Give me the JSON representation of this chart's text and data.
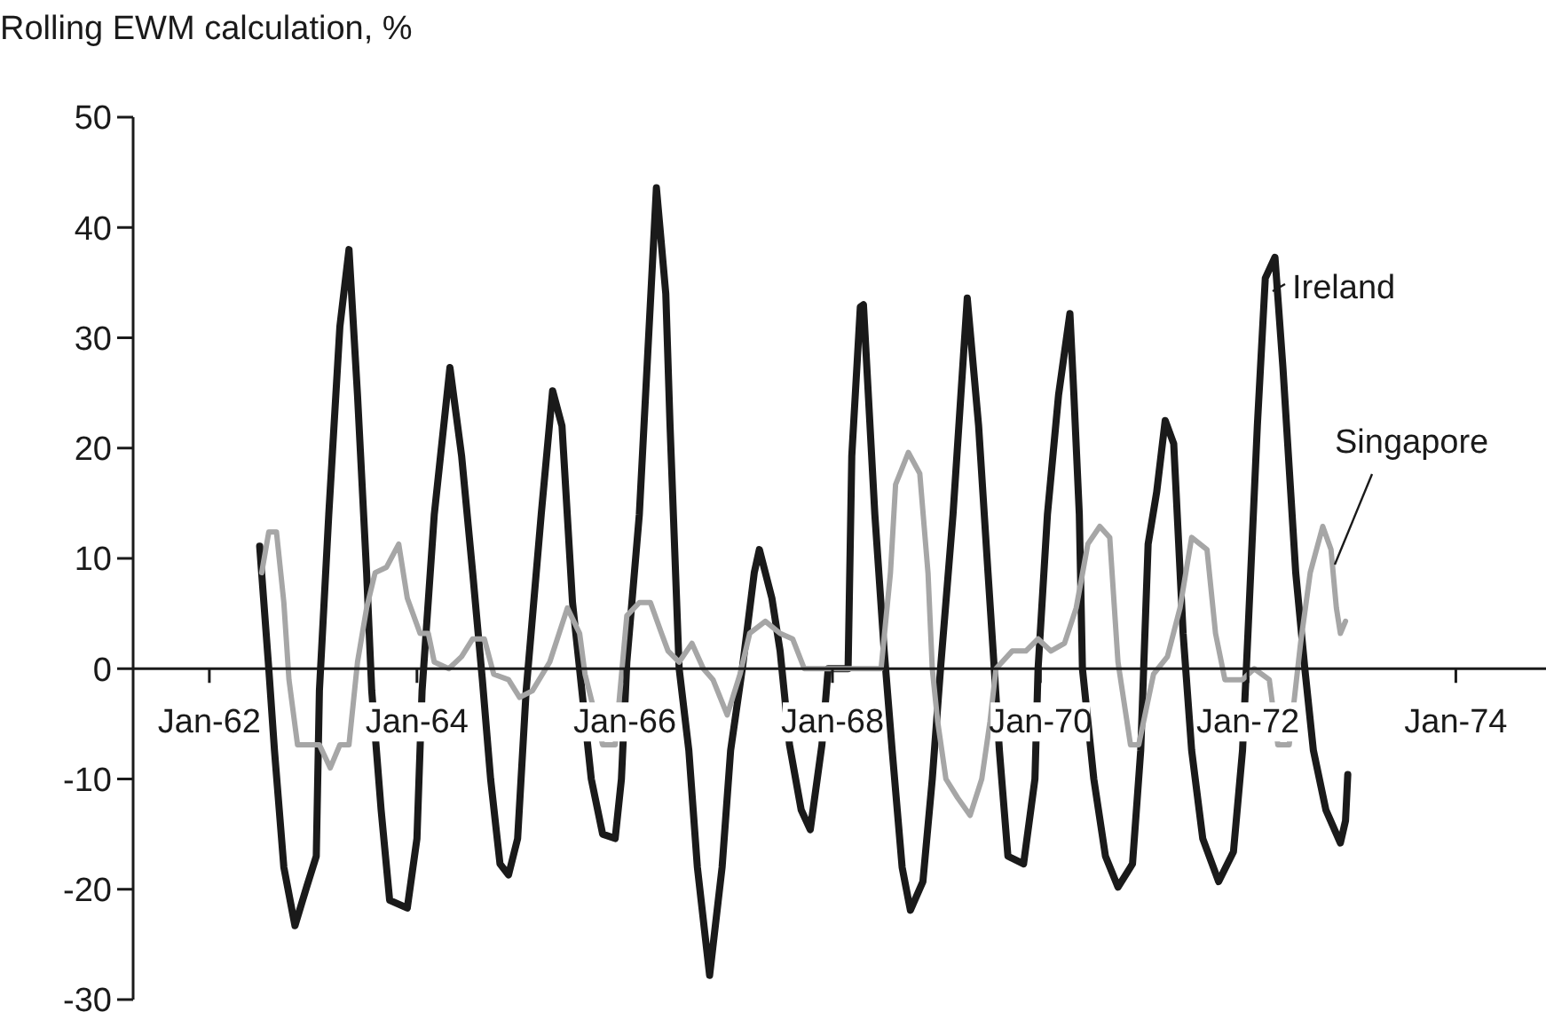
{
  "chart_data": {
    "type": "line",
    "ylabel": "Rolling EWM calculation, %",
    "ylim": [
      -30,
      50
    ],
    "yticks": [
      -30,
      -20,
      -10,
      0,
      10,
      20,
      30,
      40,
      50
    ],
    "xlim": [
      "1961-04-08",
      "1974-11-14"
    ],
    "xticks": [
      {
        "value": "1962-01",
        "label": "Jan-62"
      },
      {
        "value": "1964-01",
        "label": "Jan-64"
      },
      {
        "value": "1966-01",
        "label": "Jan-66"
      },
      {
        "value": "1968-01",
        "label": "Jan-68"
      },
      {
        "value": "1970-01",
        "label": "Jan-70"
      },
      {
        "value": "1972-01",
        "label": "Jan-72"
      },
      {
        "value": "1974-01",
        "label": "Jan-74"
      }
    ],
    "grid": false,
    "legend": "right",
    "marker": "none",
    "line_style": "solid",
    "series": [
      {
        "name": "Ireland",
        "color": "#1a1a1a",
        "x": [
          "1962-06-27",
          "1962-07-29",
          "1962-08-18",
          "1962-09-20",
          "1962-10-29",
          "1962-12-09",
          "1963-01-12",
          "1963-01-23",
          "1963-02-25",
          "1963-04-05",
          "1963-05-07",
          "1963-06-06",
          "1963-07-08",
          "1963-07-26",
          "1963-08-28",
          "1963-09-27",
          "1963-11-28",
          "1964-01-01",
          "1964-01-19",
          "1964-03-02",
          "1964-04-26",
          "1964-06-06",
          "1964-07-15",
          "1964-08-18",
          "1964-09-16",
          "1964-10-19",
          "1964-11-18",
          "1964-12-20",
          "1965-01-19",
          "1965-03-13",
          "1965-04-22",
          "1965-05-25",
          "1965-07-01",
          "1965-08-03",
          "1965-09-05",
          "1965-10-15",
          "1965-11-28",
          "1965-12-20",
          "1966-01-08",
          "1966-02-21",
          "1966-04-22",
          "1966-05-25",
          "1966-06-09",
          "1966-07-11",
          "1966-08-14",
          "1966-09-13",
          "1966-10-26",
          "1966-12-09",
          "1967-01-08",
          "1967-02-18",
          "1967-04-01",
          "1967-04-19",
          "1967-06-02",
          "1967-07-01",
          "1967-08-03",
          "1967-09-13",
          "1967-10-15",
          "1967-11-25",
          "1967-12-17",
          "1968-02-25",
          "1968-03-09",
          "1968-04-08",
          "1968-04-19",
          "1968-05-29",
          "1968-07-01",
          "1968-07-29",
          "1968-09-02",
          "1968-10-01",
          "1968-11-14",
          "1968-12-17",
          "1969-01-15",
          "1969-02-28",
          "1969-04-19",
          "1969-05-29",
          "1969-07-01",
          "1969-07-23",
          "1969-08-10",
          "1969-09-09",
          "1969-11-03",
          "1969-12-13",
          "1969-12-24",
          "1970-01-26",
          "1970-03-06",
          "1970-04-15",
          "1970-04-29",
          "1970-05-18",
          "1970-05-29",
          "1970-07-08",
          "1970-08-18",
          "1970-10-01",
          "1970-11-21",
          "1970-12-20",
          "1971-01-15",
          "1971-02-14",
          "1971-03-16",
          "1971-04-15",
          "1971-05-18",
          "1971-06-17",
          "1971-07-26",
          "1971-09-20",
          "1971-11-11",
          "1971-12-13",
          "1972-01-01",
          "1972-02-03",
          "1972-03-02",
          "1972-04-05",
          "1972-05-03",
          "1972-06-17",
          "1972-07-19",
          "1972-08-18",
          "1972-10-01",
          "1972-11-21",
          "1972-12-09",
          "1972-12-17"
        ],
        "values": [
          11.1,
          0,
          -7.4,
          -18,
          -23.3,
          -19.8,
          -17,
          -2,
          14,
          31,
          38,
          24.8,
          8.7,
          -2,
          -12.8,
          -21,
          -21.7,
          -15.4,
          -2,
          14,
          27.3,
          19.3,
          8.7,
          -1,
          -10,
          -17.7,
          -18.7,
          -15.4,
          -2,
          14,
          25.2,
          22,
          6,
          -2,
          -10,
          -15,
          -15.4,
          -10,
          0.6,
          14,
          43.6,
          34,
          22,
          0,
          -7.4,
          -18,
          -27.8,
          -18,
          -7.4,
          0,
          8.7,
          10.8,
          6.4,
          1.6,
          -6.9,
          -12.8,
          -14.6,
          -6.9,
          0,
          0,
          19.3,
          32.8,
          33,
          14,
          1.6,
          -7.4,
          -18,
          -21.9,
          -19.3,
          -10,
          0,
          14,
          33.6,
          22,
          8.7,
          0,
          -7.4,
          -17,
          -17.7,
          -10,
          0,
          14,
          24.8,
          32.2,
          24.8,
          14,
          0,
          -10,
          -17,
          -19.8,
          -17.7,
          -7.4,
          11.3,
          16,
          22.5,
          20.4,
          3.2,
          -7.4,
          -15.4,
          -19.3,
          -16.6,
          -7.4,
          3.2,
          22,
          35.4,
          37.3,
          27.3,
          8.7,
          0,
          -7.4,
          -12.8,
          -15.8,
          -13.8,
          -9.6
        ]
      },
      {
        "name": "Singapore",
        "color": "#a6a6a6",
        "x": [
          "1962-07-04",
          "1962-07-29",
          "1962-08-25",
          "1962-09-20",
          "1962-10-08",
          "1962-11-07",
          "1963-01-23",
          "1963-03-02",
          "1963-04-05",
          "1963-05-07",
          "1963-06-06",
          "1963-07-08",
          "1963-08-07",
          "1963-09-16",
          "1963-10-29",
          "1963-11-28",
          "1964-01-12",
          "1964-02-10",
          "1964-03-02",
          "1964-04-22",
          "1964-06-06",
          "1964-07-15",
          "1964-08-25",
          "1964-09-27",
          "1964-11-18",
          "1964-12-27",
          "1965-02-10",
          "1965-04-12",
          "1965-06-13",
          "1965-07-26",
          "1965-08-14",
          "1965-10-15",
          "1965-11-28",
          "1966-01-08",
          "1966-02-21",
          "1966-04-01",
          "1966-05-10",
          "1966-06-02",
          "1966-07-11",
          "1966-08-25",
          "1966-10-04",
          "1966-11-07",
          "1966-12-27",
          "1967-02-10",
          "1967-03-16",
          "1967-05-10",
          "1967-07-01",
          "1967-08-14",
          "1967-09-24",
          "1967-12-17",
          "1968-04-19",
          "1968-06-20",
          "1968-07-23",
          "1968-08-10",
          "1968-09-24",
          "1968-11-03",
          "1968-12-02",
          "1968-12-17",
          "1969-01-05",
          "1969-02-03",
          "1969-03-16",
          "1969-04-29",
          "1969-06-09",
          "1969-07-08",
          "1969-07-29",
          "1969-09-24",
          "1969-11-11",
          "1969-12-24",
          "1970-02-07",
          "1970-03-27",
          "1970-05-07",
          "1970-06-17",
          "1970-07-29",
          "1970-09-02",
          "1970-10-01",
          "1970-11-14",
          "1970-12-13",
          "1971-02-03",
          "1971-03-24",
          "1971-05-07",
          "1971-06-17",
          "1971-08-10",
          "1971-09-09",
          "1971-10-12",
          "1971-12-13",
          "1972-01-23",
          "1972-03-16",
          "1972-04-15",
          "1972-05-25",
          "1972-07-04",
          "1972-08-07",
          "1972-09-20",
          "1972-10-19",
          "1972-11-07",
          "1972-11-21",
          "1972-12-09"
        ],
        "values": [
          8.7,
          12.4,
          12.4,
          6,
          -1,
          -6.9,
          -6.9,
          -9,
          -6.9,
          -6.9,
          0.6,
          5.5,
          8.7,
          9.2,
          11.3,
          6.4,
          3.2,
          3.2,
          0.6,
          0,
          1.1,
          2.7,
          2.7,
          -0.5,
          -1,
          -2.6,
          -2,
          0.6,
          5.5,
          3.2,
          -0.5,
          -6.9,
          -6.9,
          4.8,
          6,
          6,
          3.2,
          1.6,
          0.6,
          2.3,
          0,
          -1,
          -4.2,
          -0.5,
          3.2,
          4.3,
          3.2,
          2.7,
          0,
          0,
          0,
          0,
          8.7,
          16.7,
          19.6,
          17.7,
          8.7,
          0,
          -4.8,
          -10,
          -11.7,
          -13.3,
          -10,
          -4.8,
          0,
          1.6,
          1.6,
          2.7,
          1.6,
          2.3,
          5.5,
          11.3,
          12.9,
          11.9,
          0.6,
          -6.9,
          -6.9,
          -0.5,
          1.1,
          5.5,
          11.9,
          10.8,
          3.2,
          -1,
          -1,
          0,
          -1,
          -6.9,
          -6.9,
          2.3,
          8.7,
          12.9,
          10.8,
          5.5,
          3.2,
          4.3
        ]
      }
    ]
  }
}
